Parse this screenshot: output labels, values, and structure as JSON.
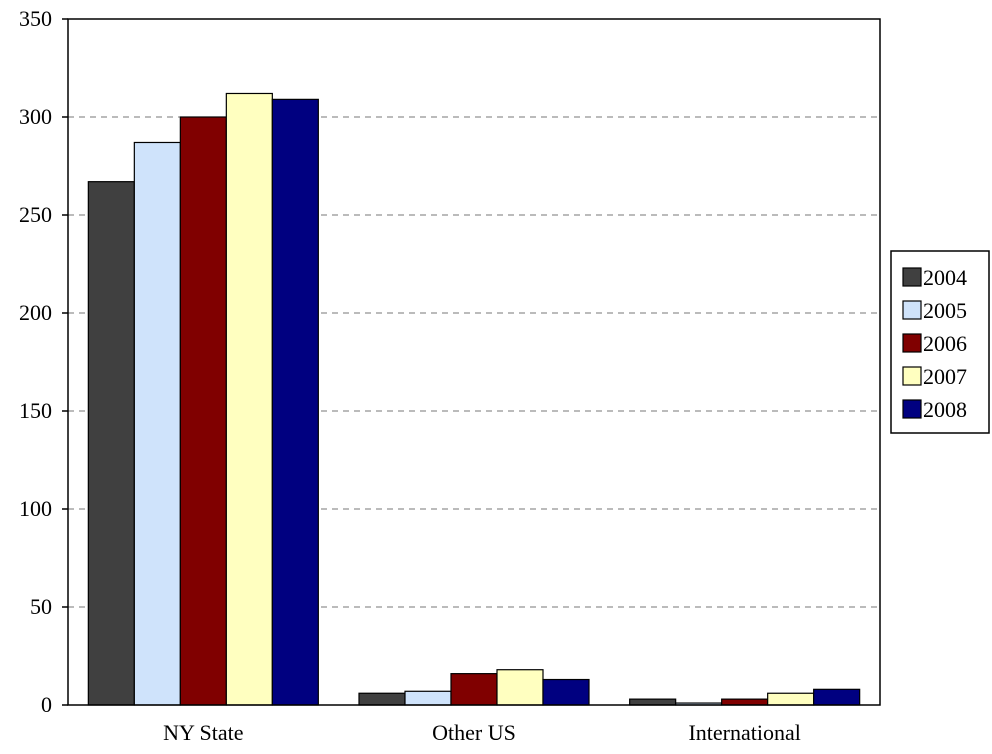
{
  "chart_data": {
    "type": "bar",
    "title": "",
    "xlabel": "",
    "ylabel": "",
    "categories": [
      "NY State",
      "Other US",
      "International"
    ],
    "series": [
      {
        "name": "2004",
        "color": "#404040",
        "values": [
          267,
          6,
          3
        ]
      },
      {
        "name": "2005",
        "color": "#cfe3fb",
        "values": [
          287,
          7,
          1
        ]
      },
      {
        "name": "2006",
        "color": "#800000",
        "values": [
          300,
          16,
          3
        ]
      },
      {
        "name": "2007",
        "color": "#ffffc0",
        "values": [
          312,
          18,
          6
        ]
      },
      {
        "name": "2008",
        "color": "#000080",
        "values": [
          309,
          13,
          8
        ]
      }
    ],
    "ylim": [
      0,
      350
    ],
    "yticks": [
      "0",
      "50",
      "100",
      "150",
      "200",
      "250",
      "300",
      "350"
    ],
    "grid": true,
    "grid_style": "dashed",
    "legend_position": "right"
  }
}
